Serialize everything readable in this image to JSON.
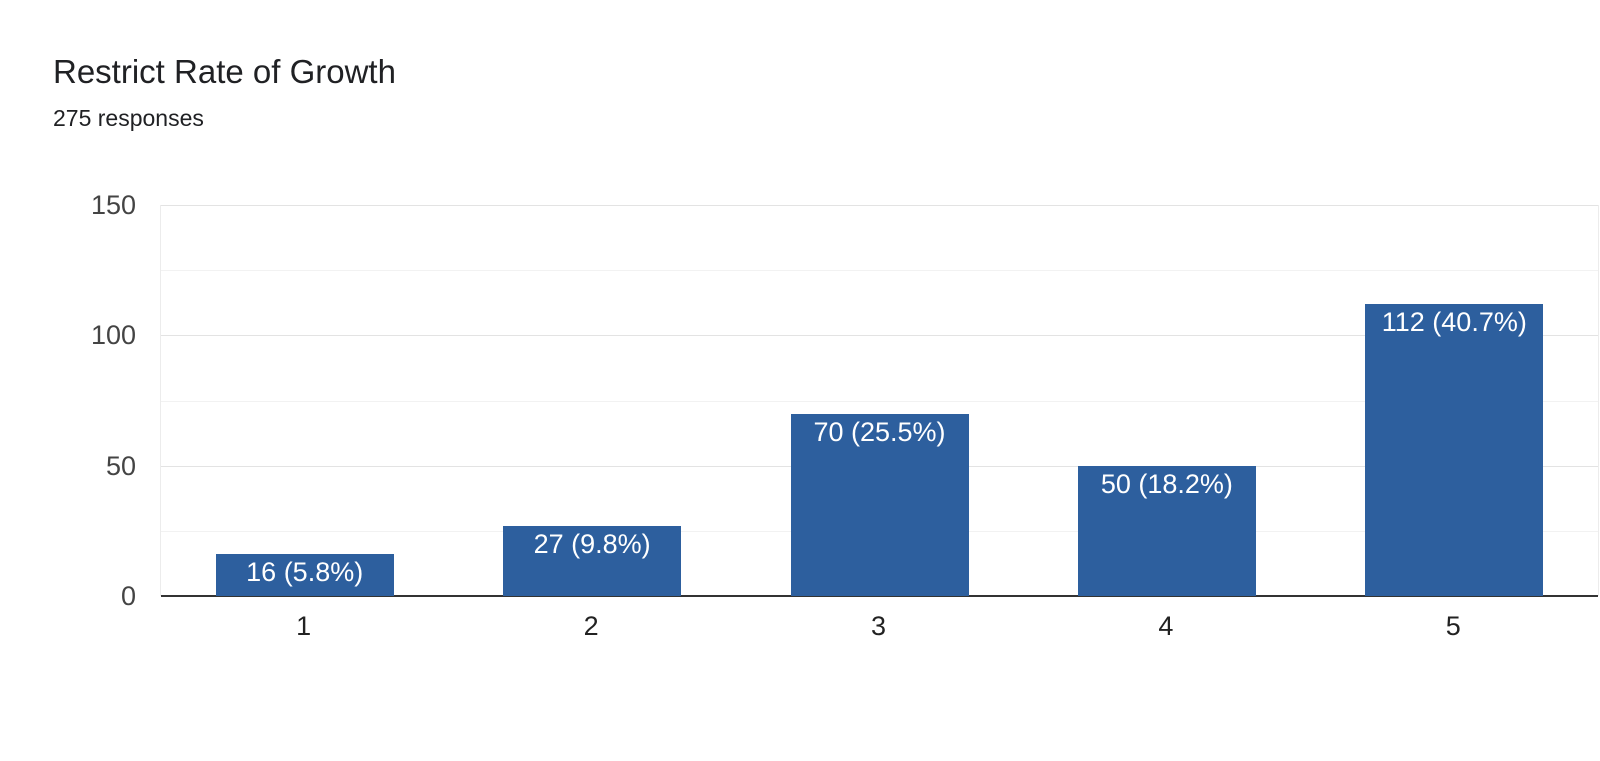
{
  "header": {
    "title": "Restrict Rate of Growth",
    "subtitle": "275 responses"
  },
  "chart_data": {
    "type": "bar",
    "title": "Restrict Rate of Growth",
    "subtitle": "275 responses",
    "total_responses": 275,
    "categories": [
      "1",
      "2",
      "3",
      "4",
      "5"
    ],
    "values": [
      16,
      27,
      70,
      50,
      112
    ],
    "percentages": [
      5.8,
      9.8,
      25.5,
      18.2,
      40.7
    ],
    "bar_labels": [
      "16 (5.8%)",
      "27 (9.8%)",
      "70 (25.5%)",
      "50 (18.2%)",
      "112 (40.7%)"
    ],
    "xlabel": "",
    "ylabel": "",
    "ylim": [
      0,
      150
    ],
    "yticks": [
      0,
      50,
      100,
      150
    ],
    "minor_gridlines": [
      25,
      75,
      125
    ],
    "grid": true,
    "legend": "none",
    "colors": {
      "bar": "#2d5f9e",
      "grid_major": "#e3e3e3",
      "grid_minor": "#f2f2f2",
      "axis_line": "#333333",
      "bar_label_text": "#ffffff",
      "title_text": "#202124",
      "y_tick_text": "#444444",
      "x_tick_text": "#222222"
    }
  }
}
